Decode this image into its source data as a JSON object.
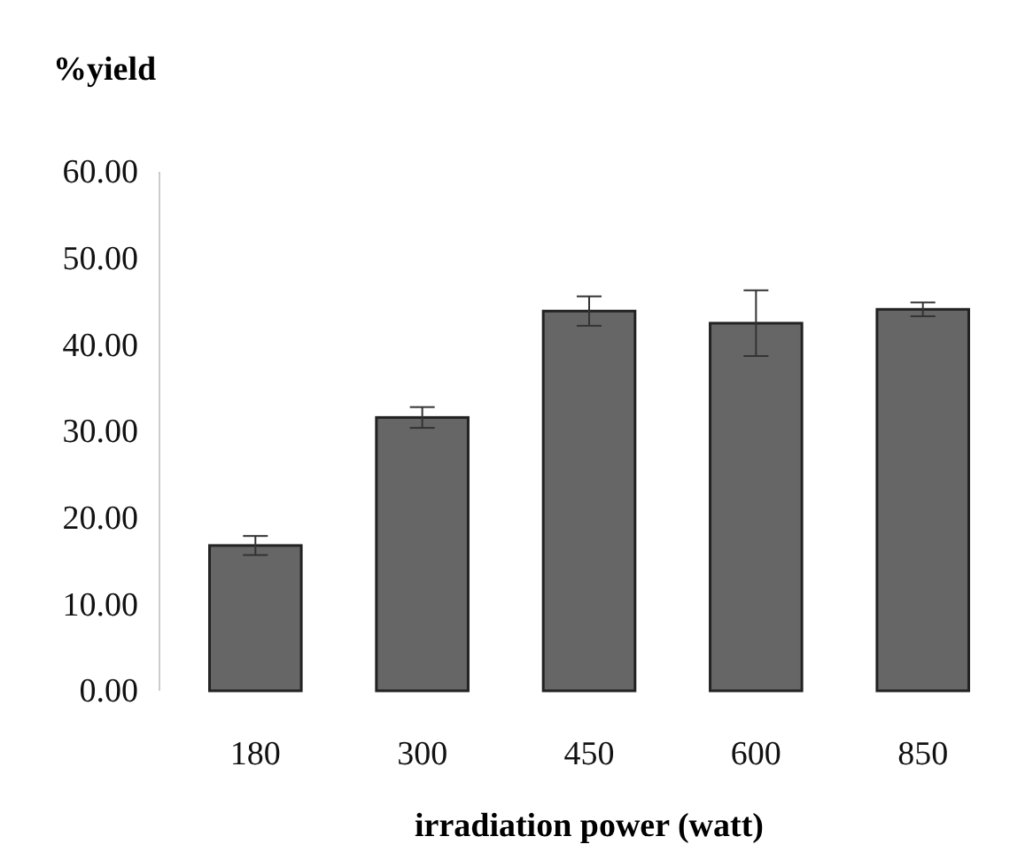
{
  "chart_data": {
    "type": "bar",
    "ylabel": "%yield",
    "xlabel": "irradiation power (watt)",
    "categories": [
      "180",
      "300",
      "450",
      "600",
      "850"
    ],
    "values": [
      16.8,
      31.6,
      43.9,
      42.5,
      44.1
    ],
    "errors": [
      1.1,
      1.2,
      1.7,
      3.8,
      0.8
    ],
    "color": "#666666",
    "ylim": [
      0,
      60
    ],
    "yticks": [
      {
        "value": 0,
        "label": "0.00"
      },
      {
        "value": 10,
        "label": "10.00"
      },
      {
        "value": 20,
        "label": "20.00"
      },
      {
        "value": 30,
        "label": "30.00"
      },
      {
        "value": 40,
        "label": "40.00"
      },
      {
        "value": 50,
        "label": "50.00"
      },
      {
        "value": 60,
        "label": "60.00"
      }
    ]
  }
}
